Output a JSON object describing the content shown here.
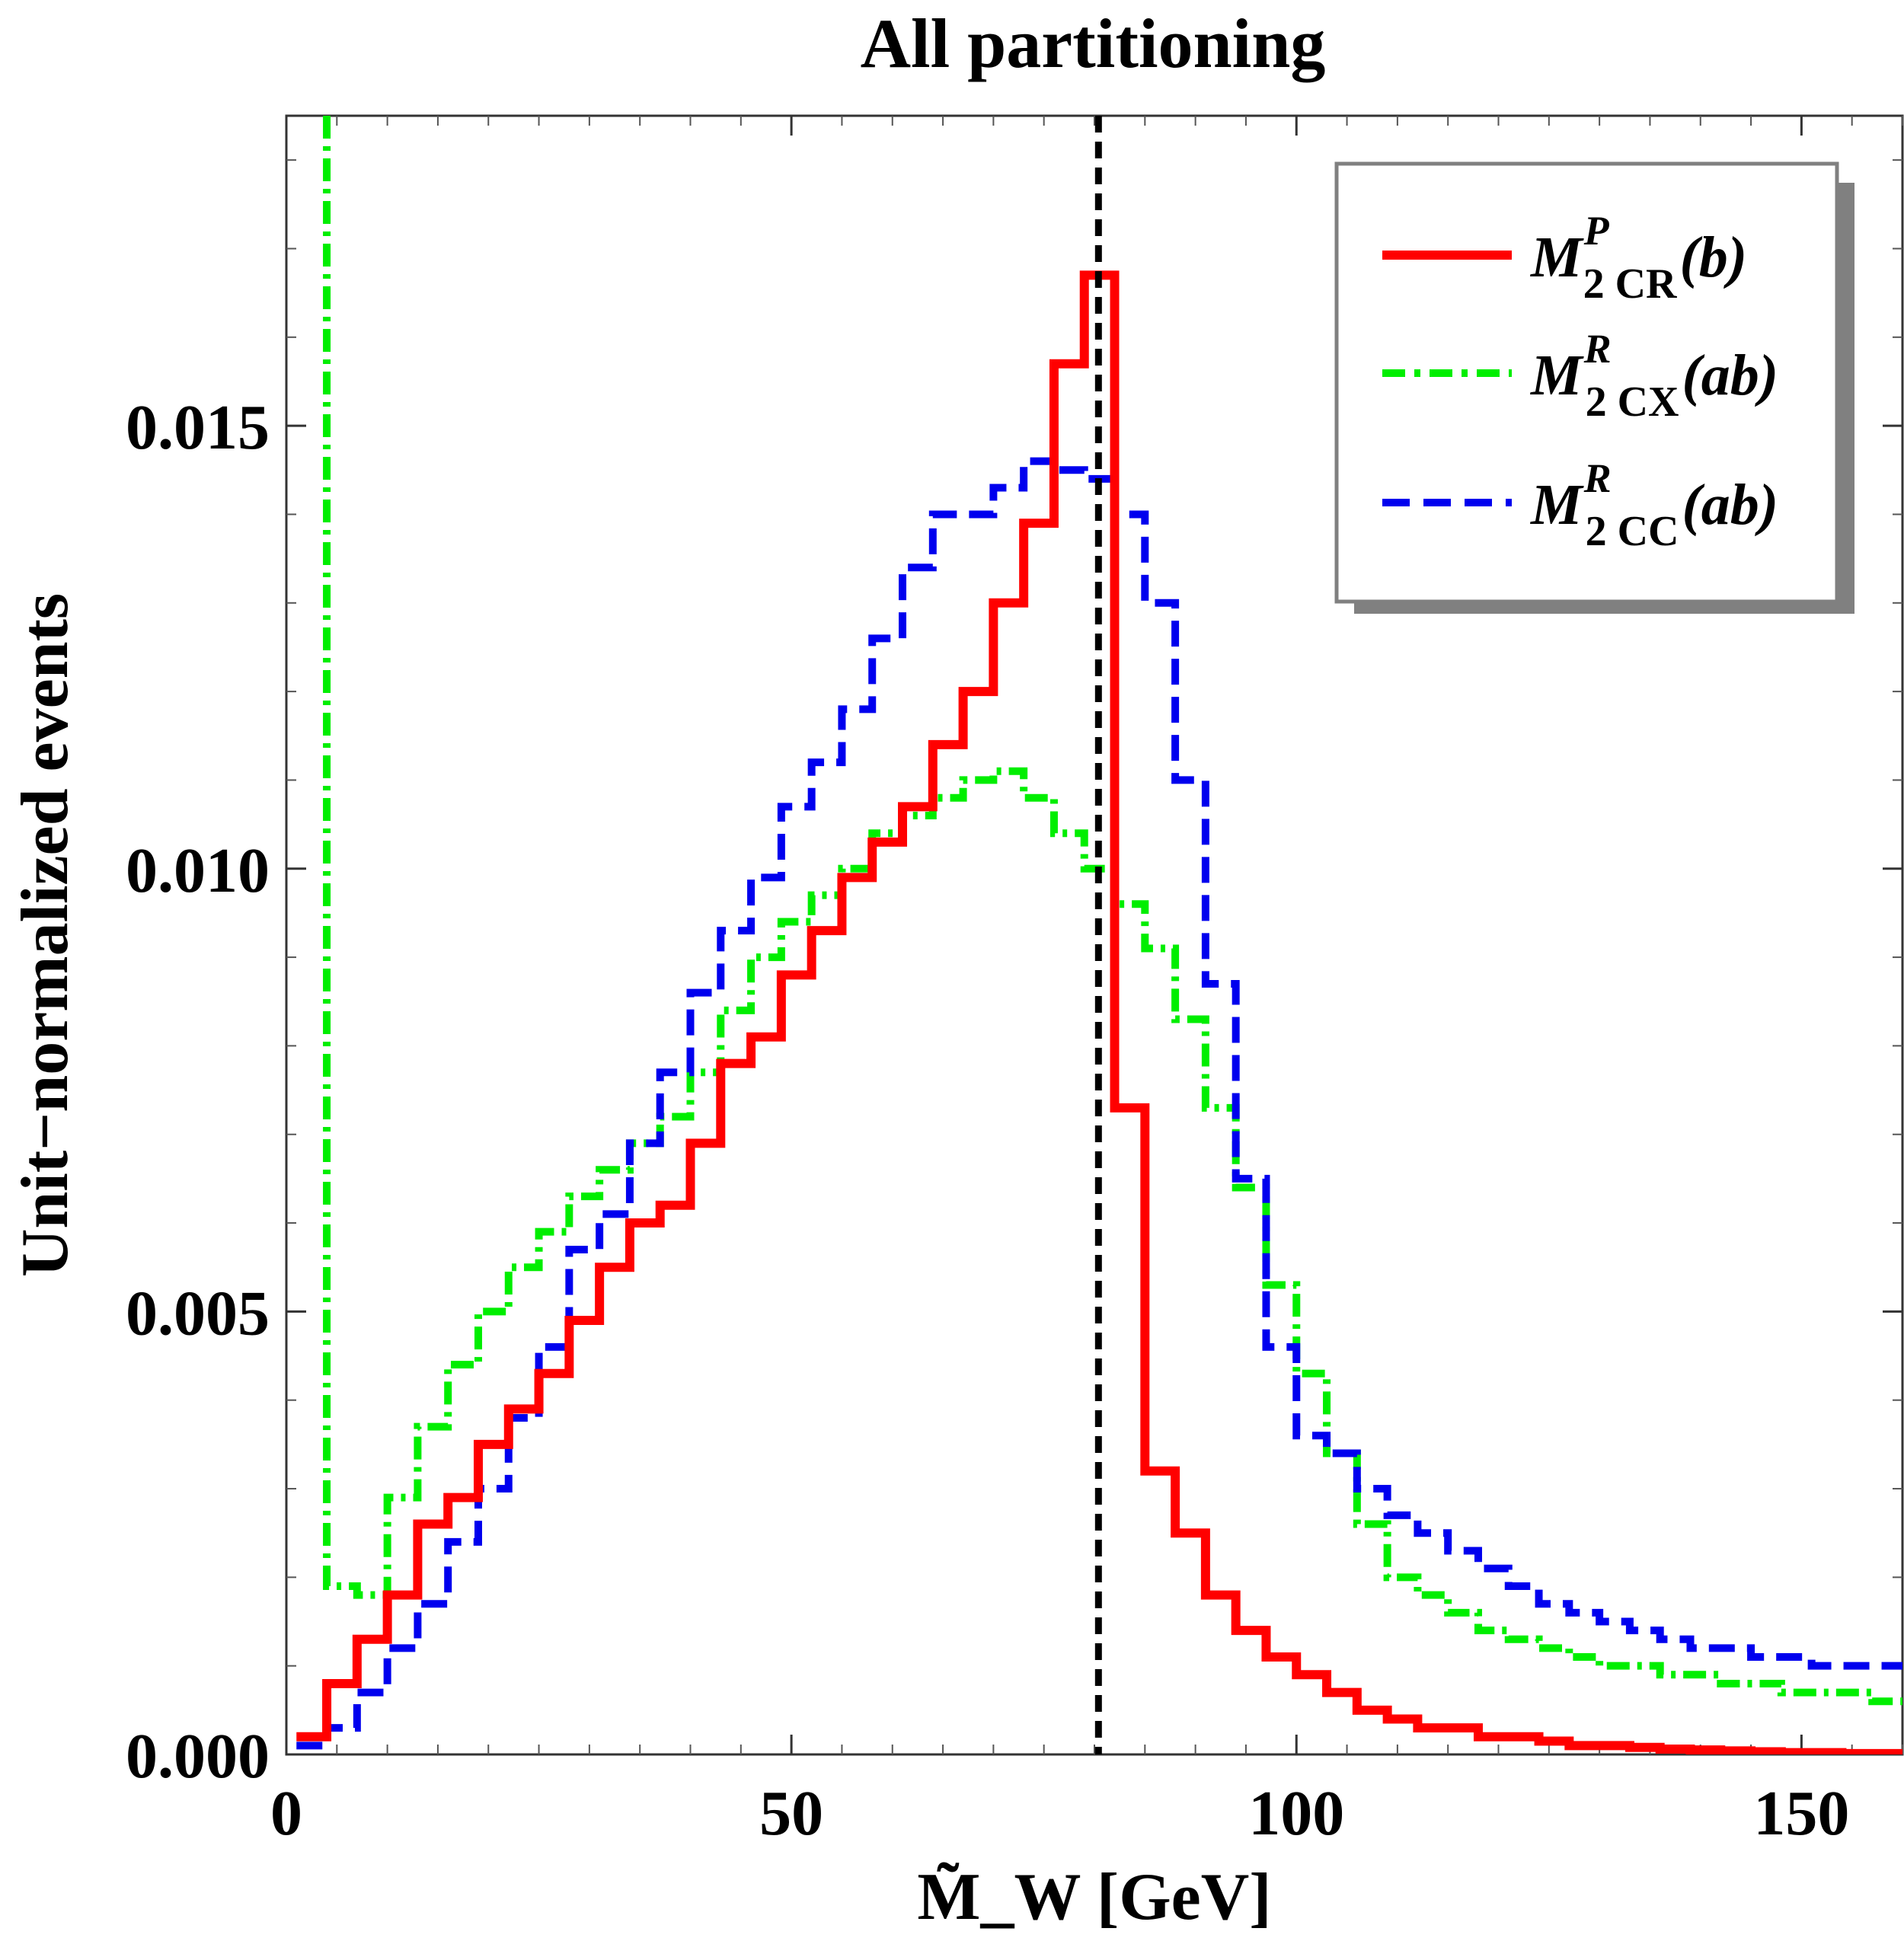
{
  "chart_data": {
    "type": "line",
    "title": "All partitioning",
    "xlabel": "M̃_W [GeV]",
    "ylabel": "Unit−normalized events",
    "xlim": [
      0,
      160
    ],
    "ylim": [
      0,
      0.0185
    ],
    "x_ticks": [
      0,
      50,
      100,
      150
    ],
    "x_tick_labels": [
      "0",
      "50",
      "100",
      "150"
    ],
    "y_ticks": [
      0,
      0.005,
      0.01,
      0.015
    ],
    "y_tick_labels": [
      "0.000",
      "0.005",
      "0.010",
      "0.015"
    ],
    "grid": false,
    "legend_position": "top-right",
    "reference_line": {
      "x": 80.4,
      "style": "dashed",
      "color": "#000000"
    },
    "bin_width": 3,
    "bin_edges_start": 1,
    "series": [
      {
        "name": "M2CR(b)",
        "legend": {
          "main": "M",
          "sub": "2 CR",
          "sup": "P",
          "arg": "(b)"
        },
        "color": "#ff0000",
        "style": "solid",
        "values": [
          0.0002,
          0.0008,
          0.0013,
          0.0018,
          0.0026,
          0.0029,
          0.0035,
          0.0039,
          0.0043,
          0.0049,
          0.0055,
          0.006,
          0.0062,
          0.0069,
          0.0078,
          0.0081,
          0.0088,
          0.0093,
          0.0099,
          0.0103,
          0.0107,
          0.0114,
          0.012,
          0.013,
          0.0139,
          0.0157,
          0.0167,
          0.0073,
          0.0032,
          0.0025,
          0.0018,
          0.0014,
          0.0011,
          0.0009,
          0.0007,
          0.0005,
          0.0004,
          0.0003,
          0.0003,
          0.0002,
          0.0002,
          0.00015,
          0.0001,
          0.0001,
          8e-05,
          6e-05,
          5e-05,
          4e-05,
          3e-05,
          2e-05,
          2e-05,
          1e-05,
          1e-05
        ]
      },
      {
        "name": "M2CX(ab)",
        "legend": {
          "main": "M",
          "sub": "2 CX",
          "sup": "R",
          "arg": "(ab)"
        },
        "color": "#00ee00",
        "style": "dashdot",
        "first_bin_value": 0.0185,
        "values": [
          0.0019,
          0.0018,
          0.0029,
          0.0037,
          0.0044,
          0.005,
          0.0055,
          0.0059,
          0.0063,
          0.0066,
          0.0069,
          0.0072,
          0.0077,
          0.0084,
          0.009,
          0.0094,
          0.0097,
          0.01,
          0.0104,
          0.0106,
          0.0108,
          0.011,
          0.0111,
          0.0108,
          0.0104,
          0.01,
          0.0096,
          0.0091,
          0.0083,
          0.0073,
          0.0064,
          0.0053,
          0.0043,
          0.0034,
          0.0026,
          0.002,
          0.0018,
          0.0016,
          0.0014,
          0.0013,
          0.0012,
          0.0011,
          0.001,
          0.001,
          0.0009,
          0.0009,
          0.0008,
          0.0008,
          0.0007,
          0.0007,
          0.0007,
          0.0006,
          0.0006
        ]
      },
      {
        "name": "M2CC(ab)",
        "legend": {
          "main": "M",
          "sub": "2 CC",
          "sup": "R",
          "arg": "(ab)"
        },
        "color": "#0000ee",
        "style": "dashed",
        "values": [
          0.0001,
          0.0003,
          0.0007,
          0.0012,
          0.0017,
          0.0024,
          0.003,
          0.0038,
          0.0046,
          0.0057,
          0.0061,
          0.0069,
          0.0077,
          0.0086,
          0.0093,
          0.0099,
          0.0107,
          0.0112,
          0.0118,
          0.0126,
          0.0134,
          0.014,
          0.014,
          0.0143,
          0.0146,
          0.0145,
          0.0144,
          0.014,
          0.013,
          0.011,
          0.0087,
          0.0065,
          0.0046,
          0.0036,
          0.0034,
          0.003,
          0.0027,
          0.0025,
          0.0023,
          0.0021,
          0.0019,
          0.0017,
          0.0016,
          0.0015,
          0.0014,
          0.0013,
          0.0012,
          0.0012,
          0.0011,
          0.0011,
          0.001,
          0.001,
          0.001
        ]
      }
    ]
  }
}
